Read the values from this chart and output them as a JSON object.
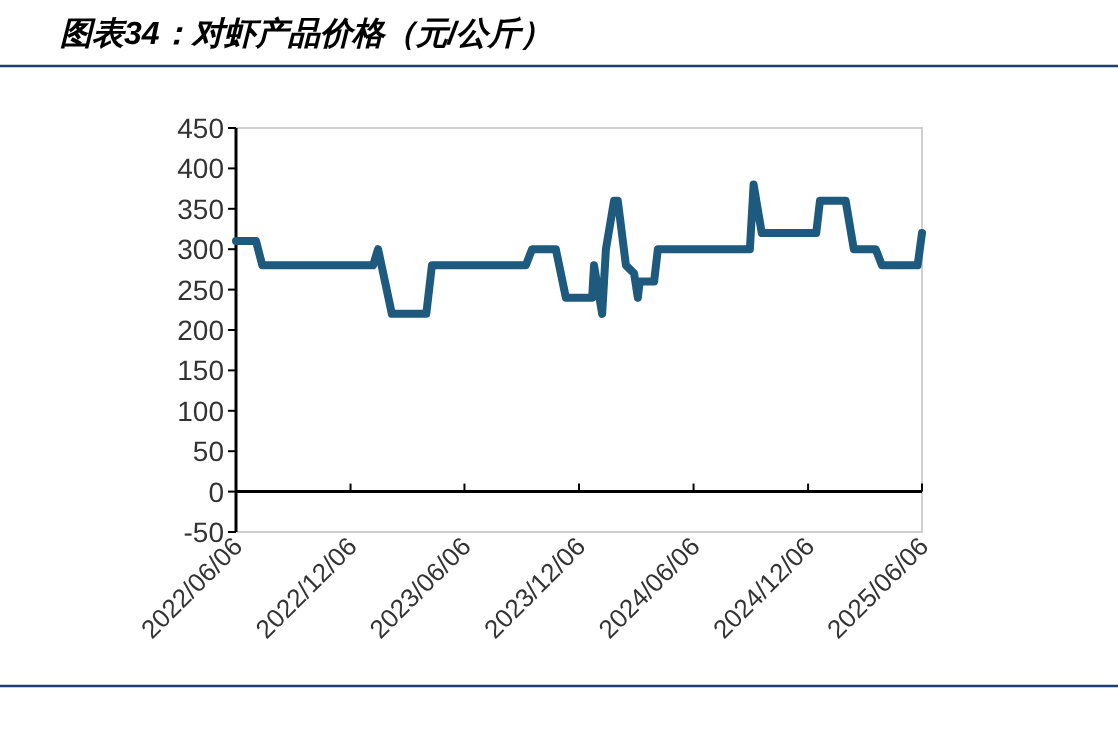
{
  "chart_data": {
    "type": "line",
    "title": "图表34：对虾产品价格（元/公斤）",
    "x": [
      "2022-06-06",
      "2022-07-08",
      "2022-07-18",
      "2023-01-11",
      "2023-01-19",
      "2023-02-10",
      "2023-04-06",
      "2023-04-15",
      "2023-09-12",
      "2023-09-22",
      "2023-10-30",
      "2023-11-15",
      "2023-12-27",
      "2023-12-30",
      "2024-01-12",
      "2024-01-18",
      "2024-01-31",
      "2024-02-06",
      "2024-02-19",
      "2024-03-03",
      "2024-03-09",
      "2024-03-12",
      "2024-04-04",
      "2024-04-10",
      "2024-09-04",
      "2024-09-10",
      "2024-09-23",
      "2024-12-19",
      "2024-12-25",
      "2025-02-04",
      "2025-02-17",
      "2025-03-24",
      "2025-04-03",
      "2025-05-30",
      "2025-06-06"
    ],
    "series": [
      {
        "color": "#1d5a7e",
        "values": [
          310,
          310,
          280,
          280,
          300,
          220,
          220,
          280,
          280,
          300,
          300,
          240,
          240,
          280,
          220,
          300,
          360,
          360,
          280,
          270,
          240,
          260,
          260,
          300,
          300,
          380,
          320,
          320,
          360,
          360,
          300,
          300,
          280,
          280,
          320
        ]
      }
    ],
    "xlim": [
      "2022-06-06",
      "2025-06-06"
    ],
    "xticks": [
      {
        "value": "2022-06-06",
        "label": "2022/06/06"
      },
      {
        "value": "2022-12-06",
        "label": "2022/12/06"
      },
      {
        "value": "2023-06-06",
        "label": "2023/06/06"
      },
      {
        "value": "2023-12-06",
        "label": "2023/12/06"
      },
      {
        "value": "2024-06-06",
        "label": "2024/06/06"
      },
      {
        "value": "2024-12-06",
        "label": "2024/12/06"
      },
      {
        "value": "2025-06-06",
        "label": "2025/06/06"
      }
    ],
    "ylim": [
      -50,
      450
    ],
    "yticks": [
      -50,
      0,
      50,
      100,
      150,
      200,
      250,
      300,
      350,
      400,
      450
    ],
    "marker": "none",
    "line_style": "solid"
  }
}
